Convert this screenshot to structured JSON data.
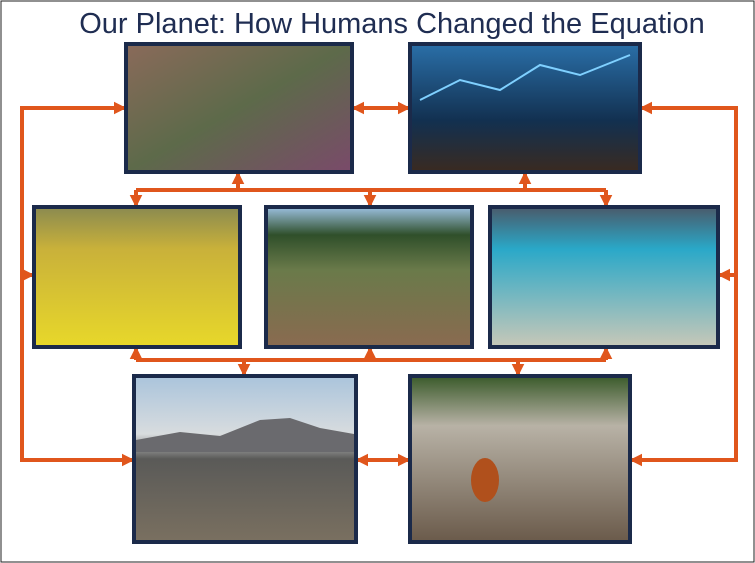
{
  "header": {
    "title": "Our Planet: How Humans Changed the Equation"
  }
}
